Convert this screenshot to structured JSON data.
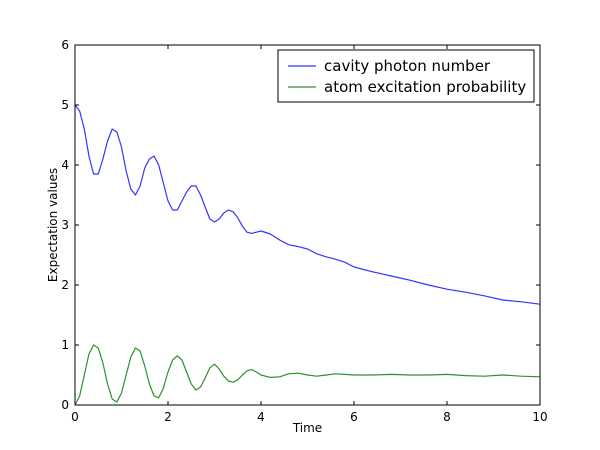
{
  "chart_data": {
    "type": "line",
    "title": "",
    "xlabel": "Time",
    "ylabel": "Expectation values",
    "xlim": [
      0,
      10
    ],
    "ylim": [
      0,
      6
    ],
    "xticks": [
      0,
      2,
      4,
      6,
      8,
      10
    ],
    "yticks": [
      0,
      1,
      2,
      3,
      4,
      5,
      6
    ],
    "grid": false,
    "legend_position": "top-right",
    "series": [
      {
        "name": "cavity photon number",
        "color": "#3333ff",
        "x": [
          0,
          0.1,
          0.2,
          0.3,
          0.4,
          0.5,
          0.6,
          0.7,
          0.8,
          0.9,
          1.0,
          1.1,
          1.2,
          1.3,
          1.4,
          1.5,
          1.6,
          1.7,
          1.8,
          1.9,
          2.0,
          2.1,
          2.2,
          2.3,
          2.4,
          2.5,
          2.6,
          2.7,
          2.8,
          2.9,
          3.0,
          3.1,
          3.2,
          3.3,
          3.4,
          3.5,
          3.6,
          3.7,
          3.8,
          3.9,
          4.0,
          4.2,
          4.4,
          4.6,
          4.8,
          5.0,
          5.2,
          5.4,
          5.6,
          5.8,
          6.0,
          6.4,
          6.8,
          7.2,
          7.6,
          8.0,
          8.4,
          8.8,
          9.2,
          9.6,
          10.0
        ],
        "y": [
          5.0,
          4.9,
          4.6,
          4.15,
          3.85,
          3.85,
          4.1,
          4.4,
          4.6,
          4.55,
          4.3,
          3.9,
          3.6,
          3.5,
          3.65,
          3.95,
          4.1,
          4.15,
          4.0,
          3.7,
          3.4,
          3.25,
          3.25,
          3.4,
          3.55,
          3.65,
          3.65,
          3.5,
          3.3,
          3.1,
          3.05,
          3.1,
          3.2,
          3.25,
          3.22,
          3.12,
          2.98,
          2.88,
          2.86,
          2.88,
          2.9,
          2.85,
          2.75,
          2.67,
          2.64,
          2.6,
          2.52,
          2.47,
          2.43,
          2.38,
          2.3,
          2.22,
          2.15,
          2.08,
          2.0,
          1.93,
          1.88,
          1.82,
          1.75,
          1.72,
          1.68
        ]
      },
      {
        "name": "atom excitation probability",
        "color": "#2a922a",
        "x": [
          0,
          0.1,
          0.2,
          0.3,
          0.4,
          0.5,
          0.6,
          0.7,
          0.8,
          0.9,
          1.0,
          1.1,
          1.2,
          1.3,
          1.4,
          1.5,
          1.6,
          1.7,
          1.8,
          1.9,
          2.0,
          2.1,
          2.2,
          2.3,
          2.4,
          2.5,
          2.6,
          2.7,
          2.8,
          2.9,
          3.0,
          3.1,
          3.2,
          3.3,
          3.4,
          3.5,
          3.6,
          3.7,
          3.8,
          3.9,
          4.0,
          4.2,
          4.4,
          4.6,
          4.8,
          5.0,
          5.2,
          5.4,
          5.6,
          5.8,
          6.0,
          6.4,
          6.8,
          7.2,
          7.6,
          8.0,
          8.4,
          8.8,
          9.2,
          9.6,
          10.0
        ],
        "y": [
          0.0,
          0.15,
          0.5,
          0.85,
          1.0,
          0.95,
          0.7,
          0.35,
          0.1,
          0.05,
          0.2,
          0.5,
          0.8,
          0.95,
          0.9,
          0.65,
          0.35,
          0.15,
          0.12,
          0.28,
          0.55,
          0.75,
          0.82,
          0.75,
          0.55,
          0.35,
          0.25,
          0.3,
          0.45,
          0.62,
          0.68,
          0.6,
          0.48,
          0.4,
          0.38,
          0.42,
          0.5,
          0.57,
          0.59,
          0.55,
          0.5,
          0.46,
          0.47,
          0.52,
          0.53,
          0.5,
          0.48,
          0.5,
          0.52,
          0.51,
          0.5,
          0.5,
          0.51,
          0.5,
          0.5,
          0.51,
          0.49,
          0.48,
          0.5,
          0.48,
          0.47
        ]
      }
    ]
  }
}
